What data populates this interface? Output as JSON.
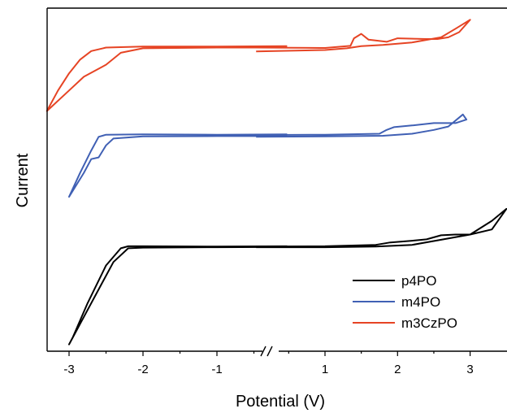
{
  "chart_data": {
    "type": "line",
    "title": "",
    "xlabel": "Potential (V)",
    "ylabel": "Current",
    "axis_break": {
      "between": [
        -0.2,
        0.2
      ],
      "symbol": "//"
    },
    "x_ticks": [
      -3,
      -2,
      -1,
      1,
      2,
      3
    ],
    "x_tick_labels": [
      "-3",
      "-2",
      "-1",
      "1",
      "2",
      "3"
    ],
    "xlim": [
      -3.3,
      3.5
    ],
    "y_ticks_shown": false,
    "ylim": [
      0,
      1
    ],
    "grid": false,
    "legend": {
      "placement": "bottom-right"
    },
    "series": [
      {
        "name": "p4PO",
        "color": "#000000",
        "segments": [
          {
            "side": "negative",
            "points": [
              [
                -0.05,
                0.304
              ],
              [
                -1.0,
                0.303
              ],
              [
                -2.0,
                0.302
              ],
              [
                -2.2,
                0.3
              ],
              [
                -2.4,
                0.26
              ],
              [
                -2.6,
                0.18
              ],
              [
                -2.8,
                0.1
              ],
              [
                -3.0,
                0.02
              ],
              [
                -2.95,
                0.04
              ],
              [
                -2.75,
                0.14
              ],
              [
                -2.5,
                0.25
              ],
              [
                -2.3,
                0.3
              ],
              [
                -2.2,
                0.306
              ],
              [
                -2.0,
                0.306
              ],
              [
                -1.0,
                0.305
              ],
              [
                -0.05,
                0.306
              ]
            ]
          },
          {
            "side": "positive",
            "points": [
              [
                0.05,
                0.303
              ],
              [
                1.0,
                0.303
              ],
              [
                1.7,
                0.305
              ],
              [
                2.2,
                0.31
              ],
              [
                2.6,
                0.325
              ],
              [
                3.0,
                0.34
              ],
              [
                3.3,
                0.38
              ],
              [
                3.5,
                0.415
              ],
              [
                3.3,
                0.355
              ],
              [
                3.0,
                0.34
              ],
              [
                2.8,
                0.34
              ],
              [
                2.6,
                0.338
              ],
              [
                2.4,
                0.326
              ],
              [
                2.2,
                0.322
              ],
              [
                1.9,
                0.317
              ],
              [
                1.7,
                0.31
              ],
              [
                1.0,
                0.306
              ],
              [
                0.05,
                0.305
              ]
            ]
          }
        ]
      },
      {
        "name": "m4PO",
        "color": "#4060b4",
        "segments": [
          {
            "side": "negative",
            "points": [
              [
                -0.05,
                0.627
              ],
              [
                -1.0,
                0.627
              ],
              [
                -2.0,
                0.626
              ],
              [
                -2.4,
                0.62
              ],
              [
                -2.5,
                0.6
              ],
              [
                -2.6,
                0.565
              ],
              [
                -2.7,
                0.56
              ],
              [
                -2.8,
                0.52
              ],
              [
                -3.0,
                0.45
              ],
              [
                -2.85,
                0.52
              ],
              [
                -2.7,
                0.585
              ],
              [
                -2.6,
                0.625
              ],
              [
                -2.5,
                0.631
              ],
              [
                -2.0,
                0.632
              ],
              [
                -1.0,
                0.631
              ],
              [
                -0.05,
                0.632
              ]
            ]
          },
          {
            "side": "positive",
            "points": [
              [
                0.05,
                0.625
              ],
              [
                1.0,
                0.626
              ],
              [
                1.8,
                0.628
              ],
              [
                2.2,
                0.634
              ],
              [
                2.5,
                0.645
              ],
              [
                2.7,
                0.655
              ],
              [
                2.9,
                0.69
              ],
              [
                2.95,
                0.675
              ],
              [
                2.8,
                0.665
              ],
              [
                2.5,
                0.665
              ],
              [
                2.2,
                0.658
              ],
              [
                1.95,
                0.653
              ],
              [
                1.85,
                0.645
              ],
              [
                1.75,
                0.634
              ],
              [
                1.0,
                0.631
              ],
              [
                0.05,
                0.63
              ]
            ]
          }
        ]
      },
      {
        "name": "m3CzPO",
        "color": "#e64424",
        "segments": [
          {
            "side": "negative",
            "points": [
              [
                -0.05,
                0.885
              ],
              [
                -1.0,
                0.885
              ],
              [
                -2.0,
                0.883
              ],
              [
                -2.3,
                0.87
              ],
              [
                -2.5,
                0.835
              ],
              [
                -2.8,
                0.8
              ],
              [
                -3.0,
                0.76
              ],
              [
                -3.3,
                0.7
              ],
              [
                -3.15,
                0.76
              ],
              [
                -3.0,
                0.81
              ],
              [
                -2.85,
                0.85
              ],
              [
                -2.7,
                0.875
              ],
              [
                -2.5,
                0.885
              ],
              [
                -2.0,
                0.888
              ],
              [
                -1.0,
                0.888
              ],
              [
                -0.05,
                0.889
              ]
            ]
          },
          {
            "side": "positive",
            "points": [
              [
                0.05,
                0.874
              ],
              [
                1.0,
                0.878
              ],
              [
                1.3,
                0.883
              ],
              [
                1.5,
                0.889
              ],
              [
                1.8,
                0.893
              ],
              [
                2.2,
                0.9
              ],
              [
                2.6,
                0.915
              ],
              [
                2.8,
                0.94
              ],
              [
                3.0,
                0.966
              ],
              [
                2.85,
                0.93
              ],
              [
                2.7,
                0.915
              ],
              [
                2.55,
                0.91
              ],
              [
                2.4,
                0.91
              ],
              [
                2.0,
                0.912
              ],
              [
                1.85,
                0.902
              ],
              [
                1.6,
                0.908
              ],
              [
                1.5,
                0.925
              ],
              [
                1.4,
                0.912
              ],
              [
                1.35,
                0.89
              ],
              [
                1.0,
                0.884
              ],
              [
                0.05,
                0.885
              ]
            ]
          }
        ]
      }
    ]
  }
}
